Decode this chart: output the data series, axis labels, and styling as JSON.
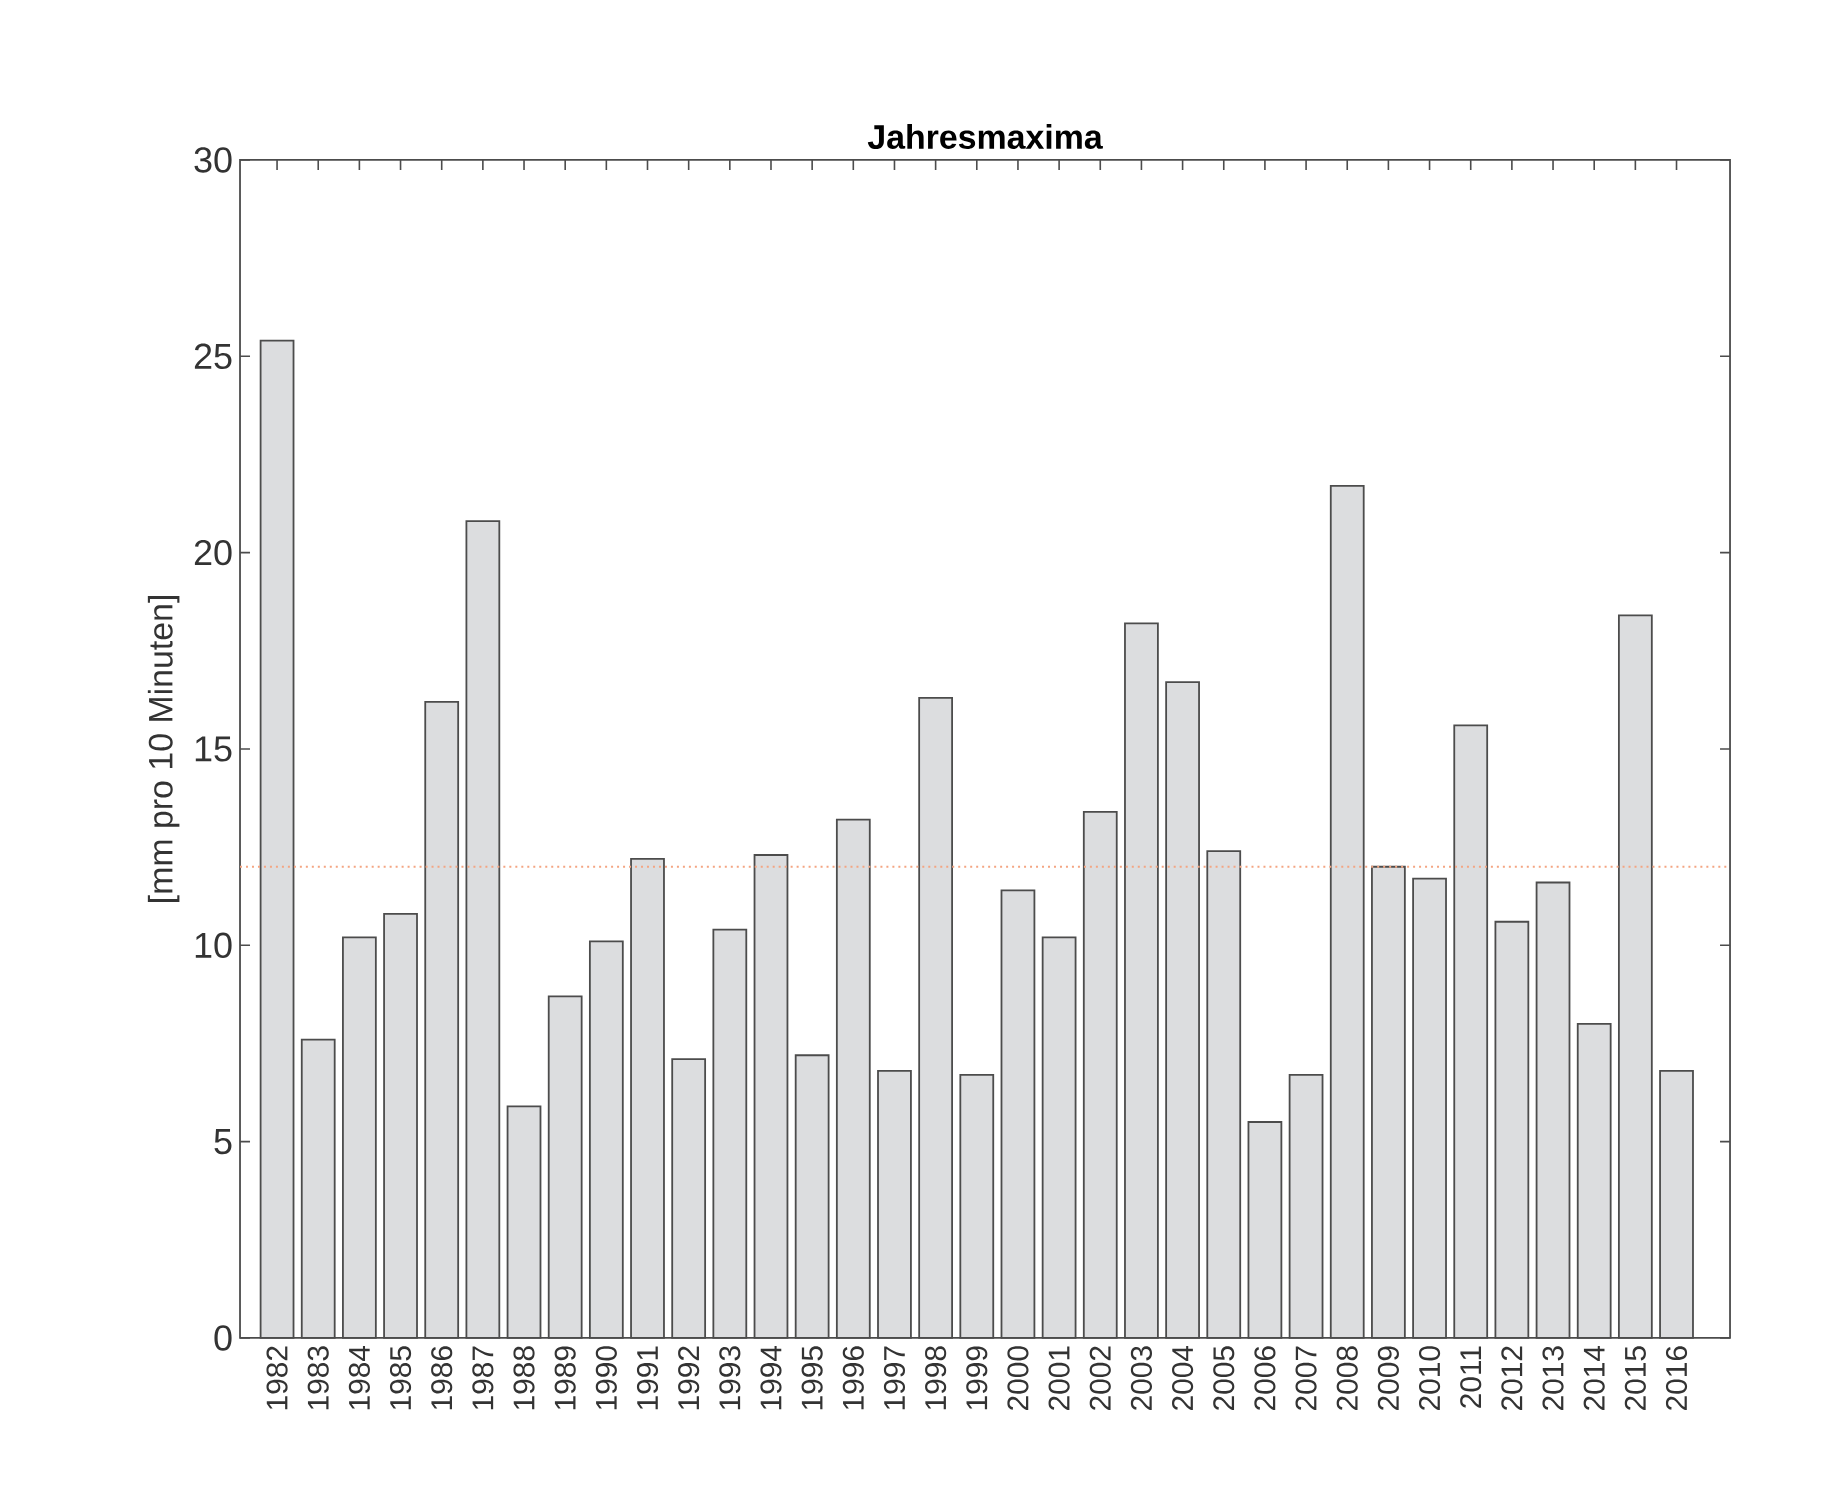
{
  "chart_data": {
    "type": "bar",
    "title": "Jahresmaxima",
    "ylabel": "[mm pro 10 Minuten]",
    "categories": [
      "1982",
      "1983",
      "1984",
      "1985",
      "1986",
      "1987",
      "1988",
      "1989",
      "1990",
      "1991",
      "1992",
      "1993",
      "1994",
      "1995",
      "1996",
      "1997",
      "1998",
      "1999",
      "2000",
      "2001",
      "2002",
      "2003",
      "2004",
      "2005",
      "2006",
      "2007",
      "2008",
      "2009",
      "2010",
      "2011",
      "2012",
      "2013",
      "2014",
      "2015",
      "2016"
    ],
    "values": [
      25.4,
      7.6,
      10.2,
      10.8,
      16.2,
      20.8,
      5.9,
      8.7,
      10.1,
      12.2,
      7.1,
      10.4,
      12.3,
      7.2,
      13.2,
      6.8,
      16.3,
      6.7,
      11.4,
      10.2,
      13.4,
      18.2,
      16.7,
      12.4,
      5.5,
      6.7,
      21.7,
      12.0,
      11.7,
      15.6,
      10.6,
      11.6,
      8.0,
      18.4,
      6.8
    ],
    "color": "#dcdddf",
    "ylim": [
      0,
      30
    ],
    "yticks": [
      0,
      5,
      10,
      15,
      20,
      25,
      30
    ],
    "ref_lines": [
      {
        "axis": "y",
        "value": 12,
        "color": "#f4a582",
        "line_style": "dotted"
      }
    ]
  }
}
